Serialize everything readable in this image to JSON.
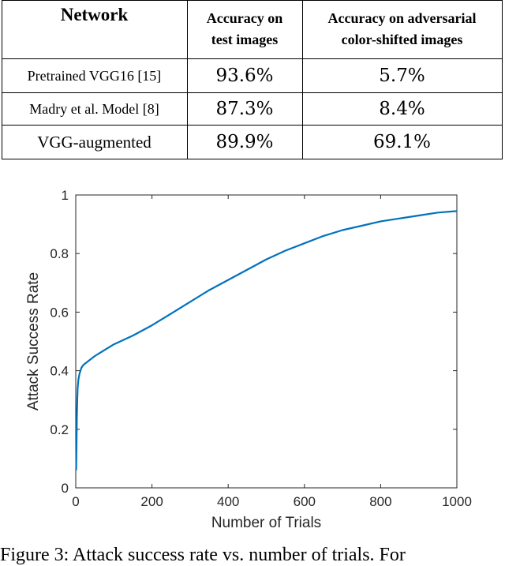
{
  "table": {
    "headers": {
      "network": "Network",
      "test_line1": "Accuracy on",
      "test_line2": "test images",
      "adv_line1": "Accuracy on adversarial",
      "adv_line2": "color-shifted images"
    },
    "rows": [
      {
        "name": "Pretrained VGG16 [15]",
        "test": "93.6%",
        "adv": "5.7%"
      },
      {
        "name": "Madry et al. Model [8]",
        "test": "87.3%",
        "adv": "8.4%"
      },
      {
        "name": "VGG-augmented",
        "test": "89.9%",
        "adv": "69.1%"
      }
    ]
  },
  "chart_data": {
    "type": "line",
    "xlabel": "Number of Trials",
    "ylabel": "Attack Success Rate",
    "xlim": [
      0,
      1000
    ],
    "ylim": [
      0,
      1
    ],
    "xticks": [
      0,
      200,
      400,
      600,
      800,
      1000
    ],
    "yticks": [
      0,
      0.2,
      0.4,
      0.6,
      0.8,
      1
    ],
    "ytick_labels": [
      "0",
      "0.2",
      "0.4",
      "0.6",
      "0.8",
      "1"
    ],
    "grid": false,
    "line_color": "#0072BD",
    "series": [
      {
        "x": [
          1,
          2,
          3,
          4,
          5,
          7,
          10,
          15,
          20,
          30,
          50,
          75,
          100,
          150,
          200,
          250,
          300,
          350,
          400,
          450,
          500,
          550,
          600,
          650,
          700,
          750,
          800,
          850,
          900,
          950,
          1000
        ],
        "y": [
          0.06,
          0.15,
          0.24,
          0.3,
          0.34,
          0.37,
          0.39,
          0.41,
          0.42,
          0.43,
          0.45,
          0.47,
          0.49,
          0.52,
          0.555,
          0.595,
          0.635,
          0.675,
          0.71,
          0.745,
          0.78,
          0.81,
          0.835,
          0.86,
          0.88,
          0.895,
          0.91,
          0.92,
          0.93,
          0.94,
          0.945
        ]
      }
    ]
  },
  "caption": "Figure 3: Attack success rate vs. number of trials. For"
}
